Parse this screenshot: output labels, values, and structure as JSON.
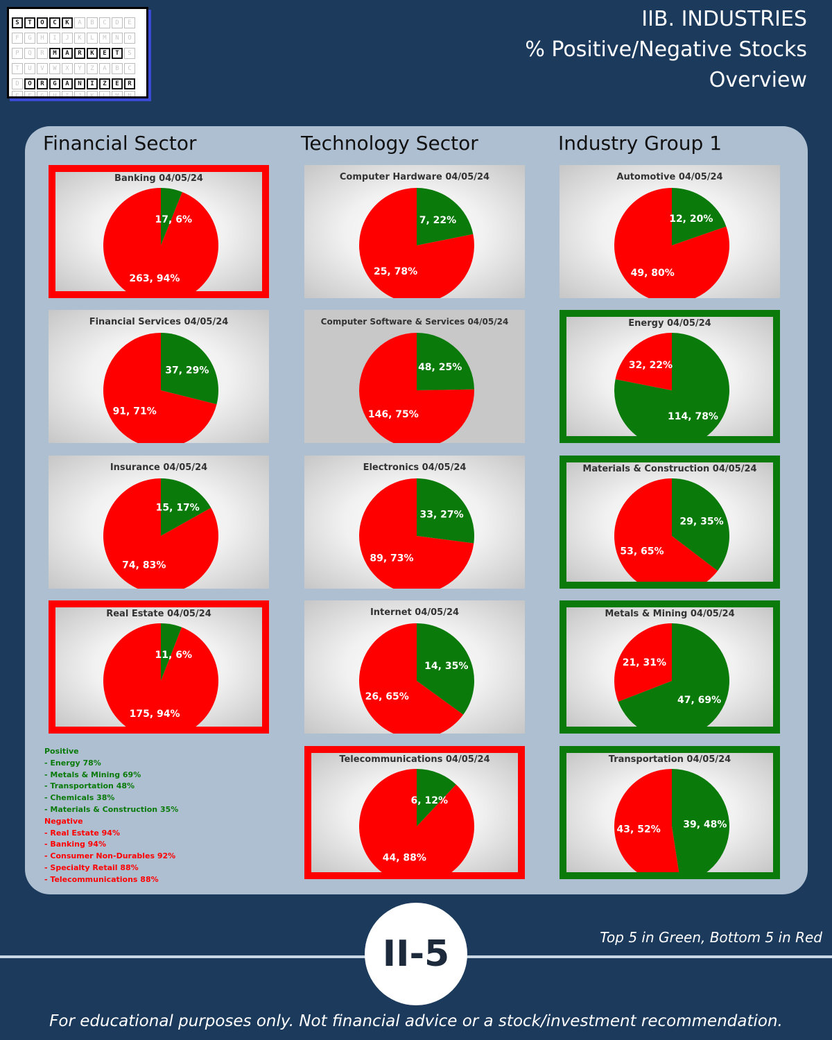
{
  "logo": {
    "rows": [
      {
        "letters": "STOCK",
        "offset": 0
      },
      {
        "letters": "MARKET",
        "offset": 3
      },
      {
        "letters": "ORGANIZER",
        "offset": 1
      }
    ],
    "filler": "ABCDEFGHIJKLMNOPQRSTUVWXYZ"
  },
  "header": {
    "line1": "IIB. INDUSTRIES",
    "line2": "% Positive/Negative Stocks",
    "line3": "Overview"
  },
  "columns": [
    {
      "title": "Financial Sector"
    },
    {
      "title": "Technology Sector"
    },
    {
      "title": "Industry Group 1"
    }
  ],
  "colors": {
    "positive": "#0a7a0a",
    "negative": "#ff0000"
  },
  "chart_data": [
    {
      "type": "pie",
      "column": 0,
      "row": 0,
      "title": "Banking 04/05/24",
      "highlight": "red",
      "positive": 17,
      "negative": 263,
      "positive_label": "17, 6%",
      "negative_label": "263, 94%"
    },
    {
      "type": "pie",
      "column": 0,
      "row": 1,
      "title": "Financial Services 04/05/24",
      "highlight": "none",
      "positive": 37,
      "negative": 91,
      "positive_label": "37, 29%",
      "negative_label": "91, 71%"
    },
    {
      "type": "pie",
      "column": 0,
      "row": 2,
      "title": "Insurance 04/05/24",
      "highlight": "none",
      "positive": 15,
      "negative": 74,
      "positive_label": "15, 17%",
      "negative_label": "74, 83%"
    },
    {
      "type": "pie",
      "column": 0,
      "row": 3,
      "title": "Real Estate 04/05/24",
      "highlight": "red",
      "positive": 11,
      "negative": 175,
      "positive_label": "11, 6%",
      "negative_label": "175, 94%"
    },
    {
      "type": "pie",
      "column": 1,
      "row": 0,
      "title": "Computer Hardware 04/05/24",
      "highlight": "none",
      "positive": 7,
      "negative": 25,
      "positive_label": "7, 22%",
      "negative_label": "25, 78%"
    },
    {
      "type": "pie",
      "column": 1,
      "row": 1,
      "title": "Computer Software & Services 04/05/24",
      "highlight": "plain",
      "positive": 48,
      "negative": 146,
      "positive_label": "48, 25%",
      "negative_label": "146, 75%"
    },
    {
      "type": "pie",
      "column": 1,
      "row": 2,
      "title": "Electronics 04/05/24",
      "highlight": "none",
      "positive": 33,
      "negative": 89,
      "positive_label": "33, 27%",
      "negative_label": "89, 73%"
    },
    {
      "type": "pie",
      "column": 1,
      "row": 3,
      "title": "Internet 04/05/24",
      "highlight": "none",
      "positive": 14,
      "negative": 26,
      "positive_label": "14, 35%",
      "negative_label": "26, 65%"
    },
    {
      "type": "pie",
      "column": 1,
      "row": 4,
      "title": "Telecommunications 04/05/24",
      "highlight": "red",
      "positive": 6,
      "negative": 44,
      "positive_label": "6, 12%",
      "negative_label": "44, 88%"
    },
    {
      "type": "pie",
      "column": 2,
      "row": 0,
      "title": "Automotive 04/05/24",
      "highlight": "none",
      "positive": 12,
      "negative": 49,
      "positive_label": "12, 20%",
      "negative_label": "49, 80%"
    },
    {
      "type": "pie",
      "column": 2,
      "row": 1,
      "title": "Energy 04/05/24",
      "highlight": "green",
      "positive": 114,
      "negative": 32,
      "positive_label": "114, 78%",
      "negative_label": "32, 22%"
    },
    {
      "type": "pie",
      "column": 2,
      "row": 2,
      "title": "Materials & Construction 04/05/24",
      "highlight": "green",
      "positive": 29,
      "negative": 53,
      "positive_label": "29, 35%",
      "negative_label": "53, 65%"
    },
    {
      "type": "pie",
      "column": 2,
      "row": 3,
      "title": "Metals & Mining 04/05/24",
      "highlight": "green",
      "positive": 47,
      "negative": 21,
      "positive_label": "47, 69%",
      "negative_label": "21, 31%"
    },
    {
      "type": "pie",
      "column": 2,
      "row": 4,
      "title": "Transportation 04/05/24",
      "highlight": "green",
      "positive": 39,
      "negative": 43,
      "positive_label": "39, 48%",
      "negative_label": "43, 52%"
    }
  ],
  "legend": {
    "positive_title": "Positive",
    "positive_items": [
      "- Energy 78%",
      "- Metals & Mining 69%",
      "- Transportation 48%",
      "- Chemicals 38%",
      "- Materials & Construction 35%"
    ],
    "negative_title": "Negative",
    "negative_items": [
      "- Real Estate 94%",
      "- Banking 94%",
      "- Consumer Non-Durables 92%",
      "- Specialty Retail 88%",
      "- Telecommunications 88%"
    ]
  },
  "footer": {
    "badge": "II-5",
    "note": "Top 5 in Green, Bottom 5 in Red",
    "disclaimer": "For educational purposes only. Not financial advice or a stock/investment recommendation."
  }
}
